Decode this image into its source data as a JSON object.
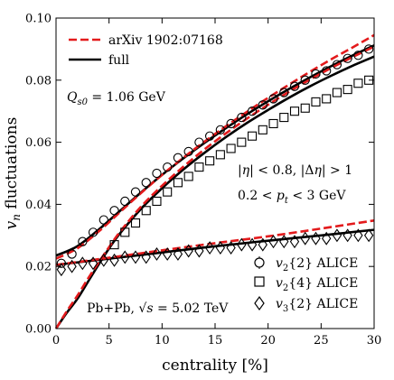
{
  "chart_data": {
    "type": "line",
    "xlabel": "centrality [%]",
    "ylabel": "v_n fluctuations",
    "xlim": [
      0,
      30
    ],
    "ylim": [
      0,
      0.1
    ],
    "xticks": [
      "0",
      "5",
      "10",
      "15",
      "20",
      "25",
      "30"
    ],
    "yticks": [
      "0.00",
      "0.02",
      "0.04",
      "0.06",
      "0.08",
      "0.10"
    ],
    "legend_top": [
      {
        "label": "arXiv 1902:07168",
        "style": "dashed",
        "color": "#e31a1c"
      },
      {
        "label": "full",
        "style": "solid",
        "color": "#000000"
      }
    ],
    "legend_bottom": [
      {
        "label": "v2{2} ALICE",
        "marker": "circle"
      },
      {
        "label": "v2{4} ALICE",
        "marker": "square"
      },
      {
        "label": "v3{2} ALICE",
        "marker": "diamond"
      }
    ],
    "annotations": {
      "qs": "Q_s0 = 1.06 GeV",
      "eta": "|η| < 0.8, |Δη| > 1",
      "pt": "0.2 < p_t < 3 GeV",
      "system": "Pb+Pb, √s = 5.02 TeV"
    },
    "series": [
      {
        "name": "v2{2} full",
        "style": "solid",
        "color": "#000000",
        "x": [
          0,
          2,
          4,
          6,
          8,
          10,
          12,
          14,
          16,
          18,
          20,
          22,
          24,
          26,
          28,
          30
        ],
        "y": [
          0.0235,
          0.0265,
          0.0318,
          0.0378,
          0.0438,
          0.0495,
          0.0548,
          0.0598,
          0.0645,
          0.069,
          0.0732,
          0.0772,
          0.081,
          0.0846,
          0.088,
          0.0912
        ]
      },
      {
        "name": "v2{2} arXiv",
        "style": "dashed",
        "color": "#e31a1c",
        "x": [
          0,
          2,
          4,
          6,
          8,
          10,
          12,
          14,
          16,
          18,
          20,
          22,
          24,
          26,
          28,
          30
        ],
        "y": [
          0.0225,
          0.0258,
          0.0312,
          0.0374,
          0.0436,
          0.0495,
          0.055,
          0.0602,
          0.0651,
          0.0698,
          0.0743,
          0.0786,
          0.0828,
          0.0868,
          0.0906,
          0.0945
        ]
      },
      {
        "name": "v2{4} full",
        "style": "solid",
        "color": "#000000",
        "x": [
          0,
          1,
          2,
          3,
          4,
          5,
          6,
          8,
          10,
          12,
          14,
          16,
          18,
          20,
          22,
          24,
          26,
          28,
          30
        ],
        "y": [
          0.0,
          0.005,
          0.0095,
          0.015,
          0.0205,
          0.0258,
          0.0305,
          0.0385,
          0.0452,
          0.0512,
          0.0566,
          0.0616,
          0.0662,
          0.0704,
          0.0744,
          0.0781,
          0.0815,
          0.0847,
          0.0876
        ]
      },
      {
        "name": "v2{4} arXiv",
        "style": "dashed",
        "color": "#e31a1c",
        "x": [
          0,
          1,
          2,
          3,
          4,
          5,
          6,
          8,
          10,
          12,
          14,
          16,
          18,
          20,
          22,
          24,
          26,
          28,
          30
        ],
        "y": [
          0.0,
          0.0055,
          0.0105,
          0.016,
          0.0212,
          0.0262,
          0.031,
          0.0392,
          0.046,
          0.0521,
          0.0577,
          0.0628,
          0.0676,
          0.0721,
          0.0763,
          0.0803,
          0.084,
          0.0875,
          0.0908
        ]
      },
      {
        "name": "v3{2} full",
        "style": "solid",
        "color": "#000000",
        "x": [
          0,
          5,
          10,
          15,
          20,
          25,
          30
        ],
        "y": [
          0.0205,
          0.0225,
          0.0245,
          0.0265,
          0.0283,
          0.03,
          0.0318
        ]
      },
      {
        "name": "v3{2} arXiv",
        "style": "dashed",
        "color": "#e31a1c",
        "x": [
          0,
          5,
          10,
          15,
          20,
          25,
          30
        ],
        "y": [
          0.0205,
          0.0228,
          0.0252,
          0.0275,
          0.0297,
          0.0322,
          0.0348
        ]
      },
      {
        "name": "v2{2} ALICE",
        "marker": "circle",
        "x": [
          0.5,
          1.5,
          2.5,
          3.5,
          4.5,
          5.5,
          6.5,
          7.5,
          8.5,
          9.5,
          10.5,
          11.5,
          12.5,
          13.5,
          14.5,
          15.5,
          16.5,
          17.5,
          18.5,
          19.5,
          20.5,
          21.5,
          22.5,
          23.5,
          24.5,
          25.5,
          26.5,
          27.5,
          28.5,
          29.5
        ],
        "y": [
          0.021,
          0.024,
          0.028,
          0.031,
          0.035,
          0.038,
          0.041,
          0.044,
          0.047,
          0.05,
          0.052,
          0.055,
          0.057,
          0.06,
          0.062,
          0.064,
          0.066,
          0.068,
          0.07,
          0.072,
          0.074,
          0.076,
          0.078,
          0.08,
          0.082,
          0.083,
          0.085,
          0.087,
          0.088,
          0.09
        ]
      },
      {
        "name": "v2{4} ALICE",
        "marker": "square",
        "x": [
          5.5,
          6.5,
          7.5,
          8.5,
          9.5,
          10.5,
          11.5,
          12.5,
          13.5,
          14.5,
          15.5,
          16.5,
          17.5,
          18.5,
          19.5,
          20.5,
          21.5,
          22.5,
          23.5,
          24.5,
          25.5,
          26.5,
          27.5,
          28.5,
          29.5
        ],
        "y": [
          0.027,
          0.031,
          0.034,
          0.038,
          0.041,
          0.044,
          0.047,
          0.049,
          0.052,
          0.054,
          0.056,
          0.058,
          0.06,
          0.062,
          0.064,
          0.066,
          0.068,
          0.07,
          0.071,
          0.073,
          0.074,
          0.076,
          0.077,
          0.079,
          0.08
        ]
      },
      {
        "name": "v3{2} ALICE",
        "marker": "diamond",
        "x": [
          0.5,
          1.5,
          2.5,
          3.5,
          4.5,
          5.5,
          6.5,
          7.5,
          8.5,
          9.5,
          10.5,
          11.5,
          12.5,
          13.5,
          14.5,
          15.5,
          16.5,
          17.5,
          18.5,
          19.5,
          20.5,
          21.5,
          22.5,
          23.5,
          24.5,
          25.5,
          26.5,
          27.5,
          28.5,
          29.5
        ],
        "y": [
          0.019,
          0.02,
          0.021,
          0.021,
          0.022,
          0.022,
          0.023,
          0.023,
          0.023,
          0.024,
          0.024,
          0.024,
          0.025,
          0.025,
          0.026,
          0.026,
          0.026,
          0.027,
          0.027,
          0.027,
          0.028,
          0.028,
          0.028,
          0.029,
          0.029,
          0.029,
          0.03,
          0.03,
          0.03,
          0.03
        ]
      }
    ]
  }
}
